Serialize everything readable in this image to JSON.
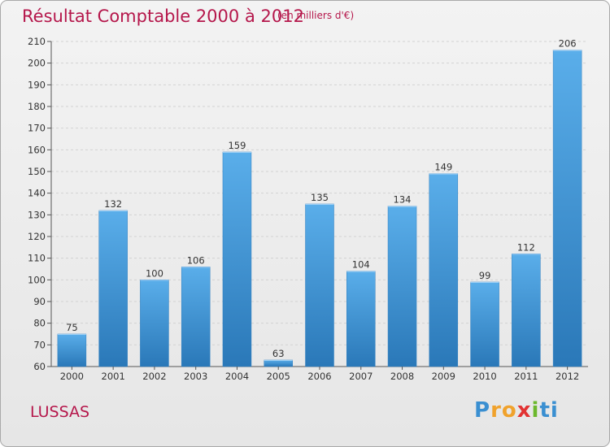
{
  "chart_data": {
    "type": "bar",
    "title": "Résultat Comptable 2000 à 2012",
    "subtitle": "(en milliers d'€)",
    "xlabel": "",
    "ylabel": "",
    "categories": [
      "2000",
      "2001",
      "2002",
      "2003",
      "2004",
      "2005",
      "2006",
      "2007",
      "2008",
      "2009",
      "2010",
      "2011",
      "2012"
    ],
    "values": [
      75,
      132,
      100,
      106,
      159,
      63,
      135,
      104,
      134,
      149,
      99,
      112,
      206
    ],
    "ylim": [
      60,
      210
    ],
    "yticks": [
      60,
      70,
      80,
      90,
      100,
      110,
      120,
      130,
      140,
      150,
      160,
      170,
      180,
      190,
      200,
      210
    ],
    "grid": true,
    "bar_color": "#4a9fdf"
  },
  "footer": {
    "commune": "LUSSAS",
    "logo_letters": [
      "P",
      "r",
      "o",
      "x",
      "i",
      "t",
      "i"
    ]
  },
  "colors": {
    "title": "#b5174b",
    "bar_top": "#5aaeea",
    "bar_bottom": "#2a78b8",
    "grid": "#d0d0d0"
  }
}
